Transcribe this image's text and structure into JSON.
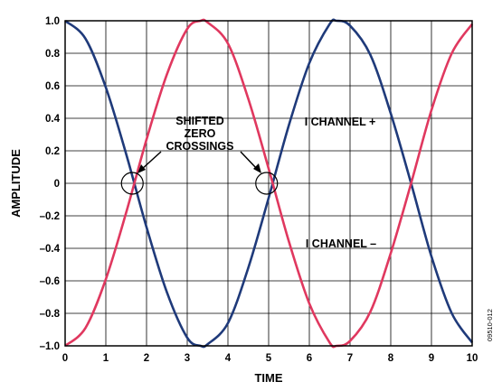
{
  "chart_data": {
    "type": "line",
    "xlabel": "TIME",
    "ylabel": "AMPLITUDE",
    "xlim": [
      0,
      10
    ],
    "ylim": [
      -1.0,
      1.0
    ],
    "x_ticks": [
      "0",
      "1",
      "2",
      "3",
      "4",
      "5",
      "6",
      "7",
      "8",
      "9",
      "10"
    ],
    "y_ticks": [
      "1.0",
      "0.8",
      "0.6",
      "0.4",
      "0.2",
      "0",
      "–0.2",
      "–0.4",
      "–0.6",
      "–0.8",
      "–1.0"
    ],
    "grid": true,
    "series": [
      {
        "name": "I CHANNEL +",
        "color": "#1f3a7a",
        "x": [
          0,
          0.5,
          1,
          1.5,
          2,
          2.5,
          3,
          3.33,
          3.5,
          4,
          4.5,
          5,
          5.5,
          6,
          6.5,
          6.67,
          7,
          7.5,
          8,
          8.5,
          9,
          9.5,
          10
        ],
        "y": [
          1.0,
          0.89,
          0.59,
          0.18,
          -0.27,
          -0.67,
          -0.95,
          -1.0,
          -0.99,
          -0.86,
          -0.52,
          -0.09,
          0.36,
          0.74,
          0.98,
          1.0,
          0.97,
          0.79,
          0.43,
          0.0,
          -0.45,
          -0.8,
          -0.98
        ]
      },
      {
        "name": "I CHANNEL –",
        "color": "#e0385f",
        "x": [
          0,
          0.5,
          1,
          1.5,
          2,
          2.5,
          3,
          3.33,
          3.5,
          4,
          4.5,
          5,
          5.5,
          6,
          6.5,
          6.67,
          7,
          7.5,
          8,
          8.5,
          9,
          9.5,
          10
        ],
        "y": [
          -1.0,
          -0.89,
          -0.59,
          -0.18,
          0.27,
          0.67,
          0.95,
          1.0,
          0.99,
          0.86,
          0.52,
          0.09,
          -0.36,
          -0.74,
          -0.98,
          -1.0,
          -0.97,
          -0.79,
          -0.43,
          0.0,
          0.45,
          0.8,
          0.98
        ]
      }
    ],
    "annotations": {
      "shifted_zero_crossings": [
        "SHIFTED",
        "ZERO",
        "CROSSINGS"
      ],
      "channel_plus": "I CHANNEL +",
      "channel_minus": "I CHANNEL –",
      "crossing_points": [
        [
          1.65,
          0.0
        ],
        [
          4.95,
          0.0
        ]
      ]
    },
    "figure_id": "09510-012"
  }
}
